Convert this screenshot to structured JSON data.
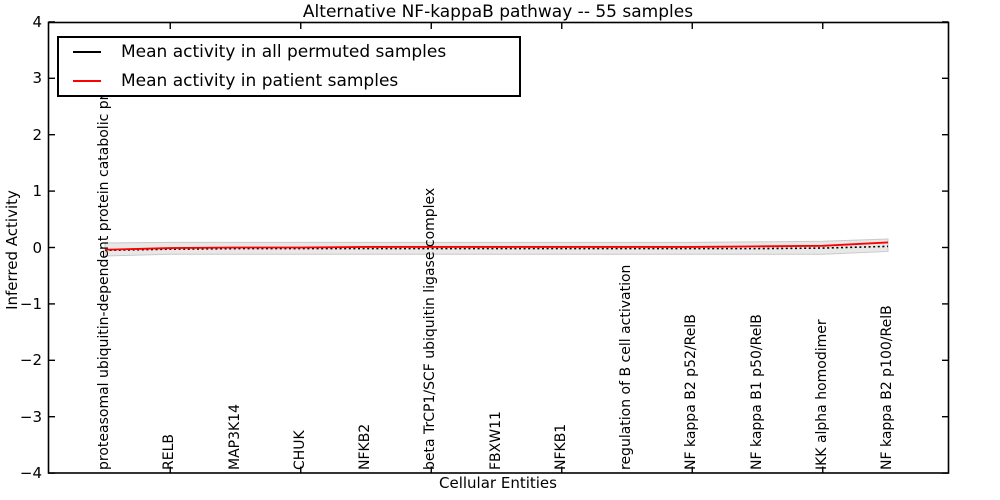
{
  "legend": {
    "entries": [
      {
        "label": "Mean activity in all permuted samples",
        "color": "#000000",
        "style": "solid"
      },
      {
        "label": "Mean activity in patient samples",
        "color": "#ff0000",
        "style": "solid"
      }
    ],
    "position": "upper left"
  },
  "chart_data": {
    "type": "line",
    "title": "Alternative NF-kappaB pathway -- 55 samples",
    "xlabel": "Cellular Entities",
    "ylabel": "Inferred Activity",
    "ylim": [
      -4,
      4
    ],
    "ytick_values": [
      4,
      3,
      2,
      1,
      0,
      -1,
      -2,
      -3,
      -4
    ],
    "ytick_labels": [
      "4",
      "3",
      "2",
      "1",
      "0",
      "−1",
      "−2",
      "−3",
      "−4"
    ],
    "grid": false,
    "legend_position": "upper left",
    "categories": [
      "proteasomal ubiquitin-dependent protein catabolic process",
      "RELB",
      "MAP3K14",
      "CHUK",
      "NFKB2",
      "beta TrCP1/SCF ubiquitin ligase complex",
      "FBXW11",
      "NFKB1",
      "regulation of B cell activation",
      "NF kappa B2 p52/RelB",
      "NF kappa B1 p50/RelB",
      "IKK alpha homodimer",
      "NF kappa B2 p100/RelB"
    ],
    "series": [
      {
        "name": "Mean activity in all permuted samples",
        "color": "#000000",
        "style": "dotted",
        "values": [
          -0.05,
          -0.03,
          -0.02,
          -0.02,
          -0.02,
          -0.02,
          -0.02,
          -0.02,
          -0.02,
          -0.02,
          -0.02,
          -0.01,
          0.02
        ]
      },
      {
        "name": "Mean activity in patient samples",
        "color": "#ff0000",
        "style": "solid",
        "values": [
          -0.04,
          -0.01,
          0.0,
          0.0,
          0.01,
          0.01,
          0.01,
          0.01,
          0.01,
          0.01,
          0.02,
          0.03,
          0.09
        ]
      }
    ],
    "band": {
      "name": "permuted activity spread",
      "fill": "#e8e8e8",
      "edge": "#c9c9c9",
      "upper": [
        0.08,
        0.09,
        0.09,
        0.09,
        0.09,
        0.09,
        0.09,
        0.09,
        0.09,
        0.09,
        0.1,
        0.11,
        0.15
      ],
      "lower": [
        -0.15,
        -0.12,
        -0.12,
        -0.12,
        -0.12,
        -0.12,
        -0.12,
        -0.12,
        -0.12,
        -0.12,
        -0.12,
        -0.12,
        -0.07
      ]
    }
  }
}
